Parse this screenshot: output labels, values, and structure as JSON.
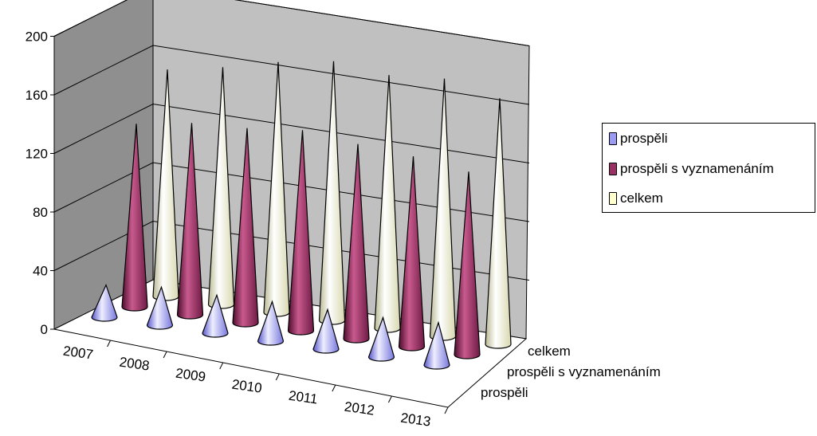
{
  "chart_data": {
    "type": "bar",
    "subtype": "3d-cone",
    "title": "",
    "categories": [
      "2007",
      "2008",
      "2009",
      "2010",
      "2011",
      "2012",
      "2013"
    ],
    "series": [
      {
        "name": "prospěli",
        "values": [
          22,
          26,
          26,
          27,
          27,
          27,
          29
        ],
        "color": "#9B9BF5"
      },
      {
        "name": "prospěli s vyznamenáním",
        "values": [
          125,
          131,
          133,
          137,
          133,
          130,
          125
        ],
        "color": "#9B2E62"
      },
      {
        "name": "celkem",
        "values": [
          155,
          162,
          171,
          177,
          173,
          176,
          168
        ],
        "color": "#FFFFCC"
      }
    ],
    "ylim": [
      0,
      200
    ],
    "yticks": [
      "0",
      "40",
      "80",
      "120",
      "160",
      "200"
    ],
    "grid": true,
    "legend_position": "right"
  },
  "legend": {
    "items": [
      {
        "label": "prospěli",
        "color": "#9B9BF5"
      },
      {
        "label": "prospěli s vyznamenáním",
        "color": "#9B2E62"
      },
      {
        "label": "celkem",
        "color": "#FFFFCC"
      }
    ]
  },
  "depth_axis": {
    "labels": [
      "celkem",
      "prospěli s vyznamenáním",
      "prospěli"
    ]
  }
}
